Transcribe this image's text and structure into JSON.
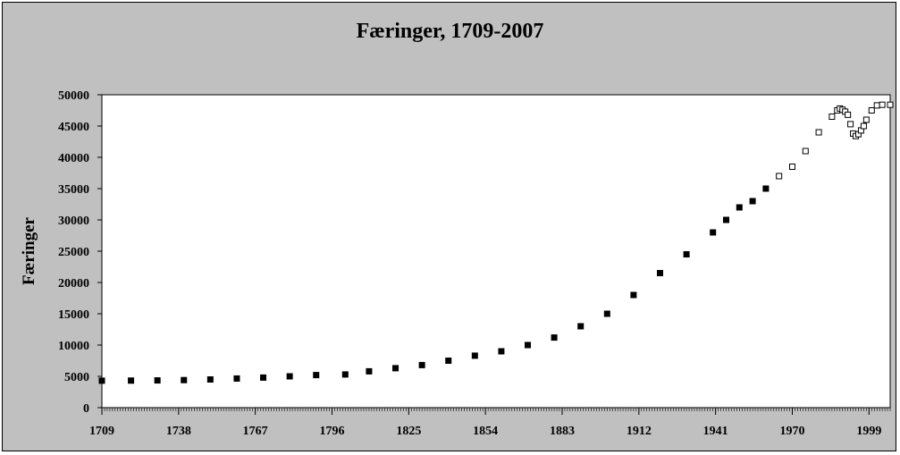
{
  "chart_data": {
    "type": "scatter",
    "title": "Færinger, 1709-2007",
    "xlabel": "",
    "ylabel": "Færinger",
    "xlim": [
      1709,
      2007
    ],
    "ylim": [
      0,
      50000
    ],
    "x_ticks": [
      1709,
      1738,
      1767,
      1796,
      1825,
      1854,
      1883,
      1912,
      1941,
      1970,
      1999
    ],
    "y_ticks": [
      0,
      5000,
      10000,
      15000,
      20000,
      25000,
      30000,
      35000,
      40000,
      45000,
      50000
    ],
    "grid": false,
    "legend": "none",
    "colors": {
      "frame_bg": "#c0c0c0",
      "plot_bg": "#ffffff",
      "marker": "#000000"
    },
    "series": [
      {
        "marker": "filled-square",
        "x": [
          1709,
          1720,
          1730,
          1740,
          1750,
          1760,
          1770,
          1780,
          1790,
          1801,
          1810,
          1820,
          1830,
          1840,
          1850,
          1860,
          1870,
          1880,
          1890,
          1900,
          1910,
          1920,
          1930,
          1940,
          1945,
          1950,
          1955,
          1960
        ],
        "y": [
          4300,
          4320,
          4350,
          4400,
          4500,
          4650,
          4800,
          5000,
          5200,
          5300,
          5800,
          6300,
          6800,
          7500,
          8300,
          9000,
          10000,
          11200,
          13000,
          15000,
          18000,
          21500,
          24500,
          28000,
          30000,
          32000,
          33000,
          35000
        ]
      },
      {
        "marker": "hollow-square",
        "x": [
          1965,
          1970,
          1975,
          1980,
          1985,
          1987,
          1988,
          1989,
          1990,
          1991,
          1992,
          1993,
          1994,
          1995,
          1996,
          1997,
          1998,
          2000,
          2002,
          2004,
          2007
        ],
        "y": [
          37000,
          38500,
          41000,
          44000,
          46500,
          47500,
          47800,
          47600,
          47300,
          46800,
          45300,
          43800,
          43400,
          43700,
          44300,
          45000,
          46000,
          47500,
          48300,
          48400,
          48400
        ]
      }
    ]
  }
}
